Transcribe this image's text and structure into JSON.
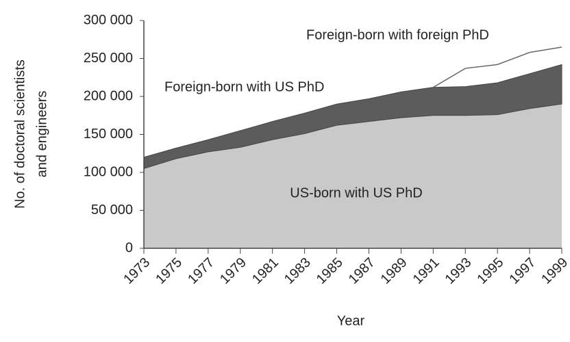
{
  "chart_data": {
    "type": "stacked-area",
    "xlabel": "Year",
    "ylabel": [
      "No. of doctoral scientists",
      "and engineers"
    ],
    "categories": [
      "1973",
      "1975",
      "1977",
      "1979",
      "1981",
      "1983",
      "1985",
      "1987",
      "1989",
      "1991",
      "1993",
      "1995",
      "1997",
      "1999"
    ],
    "series": [
      {
        "name": "US-born with US PhD",
        "color": "#c9c9c9",
        "values": [
          105000,
          118000,
          127000,
          133000,
          143000,
          151000,
          162000,
          167000,
          172000,
          175000,
          175000,
          176000,
          184000,
          190000
        ]
      },
      {
        "name": "Foreign-born with US PhD",
        "color": "#5c5c5c",
        "values": [
          15000,
          14000,
          16000,
          22000,
          24000,
          27000,
          28000,
          30000,
          34000,
          37000,
          38000,
          42000,
          46000,
          52000
        ]
      },
      {
        "name": "Foreign-born with foreign PhD",
        "color": "#666666",
        "values": [
          null,
          null,
          null,
          null,
          null,
          null,
          null,
          null,
          null,
          0,
          24000,
          24000,
          28000,
          23000
        ]
      }
    ],
    "ylim": [
      0,
      300000
    ],
    "yticks": [
      0,
      {
        "value": 50000,
        "label": "50 000"
      },
      {
        "value": 100000,
        "label": "100 000"
      },
      {
        "value": 150000,
        "label": "150 000"
      },
      {
        "value": 200000,
        "label": "200 000"
      },
      {
        "value": 250000,
        "label": "250 000"
      },
      {
        "value": 300000,
        "label": "300 000"
      }
    ]
  }
}
